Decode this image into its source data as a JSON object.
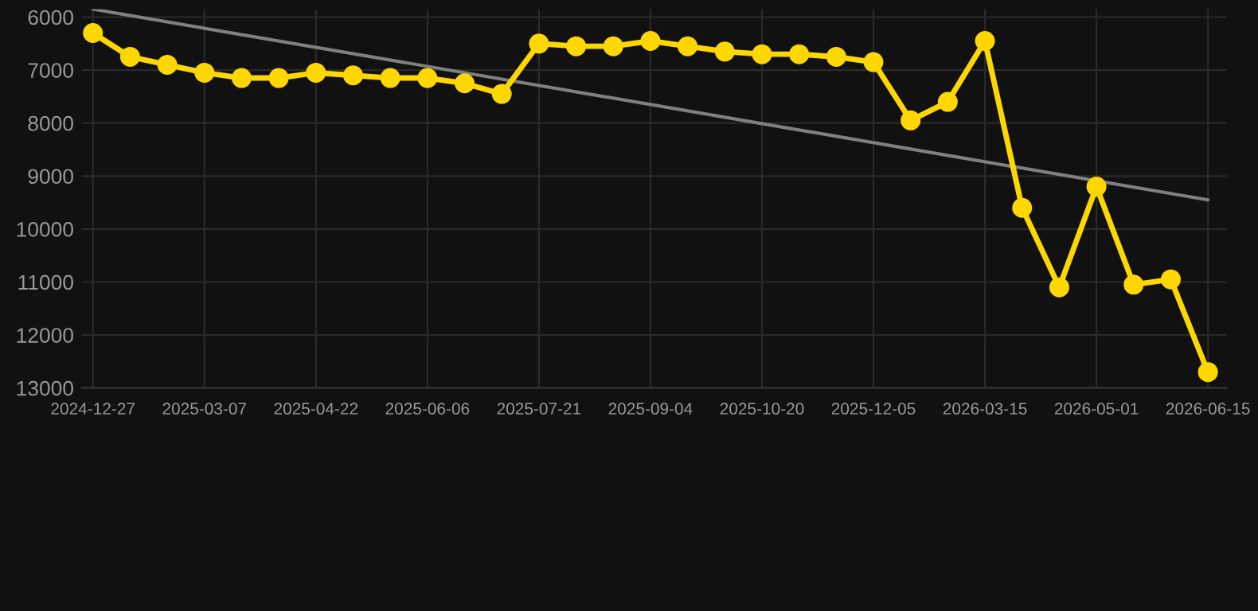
{
  "chart_data": {
    "type": "line",
    "categories": [
      "2024-12-27",
      null,
      null,
      "2025-03-07",
      null,
      null,
      "2025-04-22",
      null,
      null,
      "2025-06-06",
      null,
      null,
      "2025-07-21",
      null,
      null,
      "2025-09-04",
      null,
      null,
      "2025-10-20",
      null,
      null,
      "2025-12-05",
      null,
      null,
      "2026-03-15",
      null,
      null,
      "2026-05-01",
      null,
      null,
      "2026-06-15"
    ],
    "series": [
      {
        "color": "#ffd700",
        "marker": "circle",
        "values": [
          6300,
          6750,
          6900,
          7050,
          7150,
          7150,
          7050,
          7100,
          7150,
          7150,
          7250,
          7450,
          6500,
          6550,
          6550,
          6450,
          6550,
          6650,
          6700,
          6700,
          6750,
          6850,
          7950,
          7600,
          6450,
          9600,
          11100,
          9200,
          11050,
          10950,
          12700
        ]
      },
      {
        "color": "#808080",
        "marker": "none",
        "values": [
          5850,
          null,
          null,
          null,
          null,
          null,
          null,
          null,
          null,
          null,
          null,
          null,
          null,
          null,
          null,
          null,
          null,
          null,
          null,
          null,
          null,
          null,
          null,
          null,
          null,
          null,
          null,
          null,
          null,
          null,
          9450
        ]
      }
    ],
    "ylim": [
      13000,
      5850
    ],
    "yticks": [
      6000,
      7000,
      8000,
      9000,
      10000,
      11000,
      12000,
      13000
    ],
    "grid": true,
    "line_style": "solid"
  }
}
